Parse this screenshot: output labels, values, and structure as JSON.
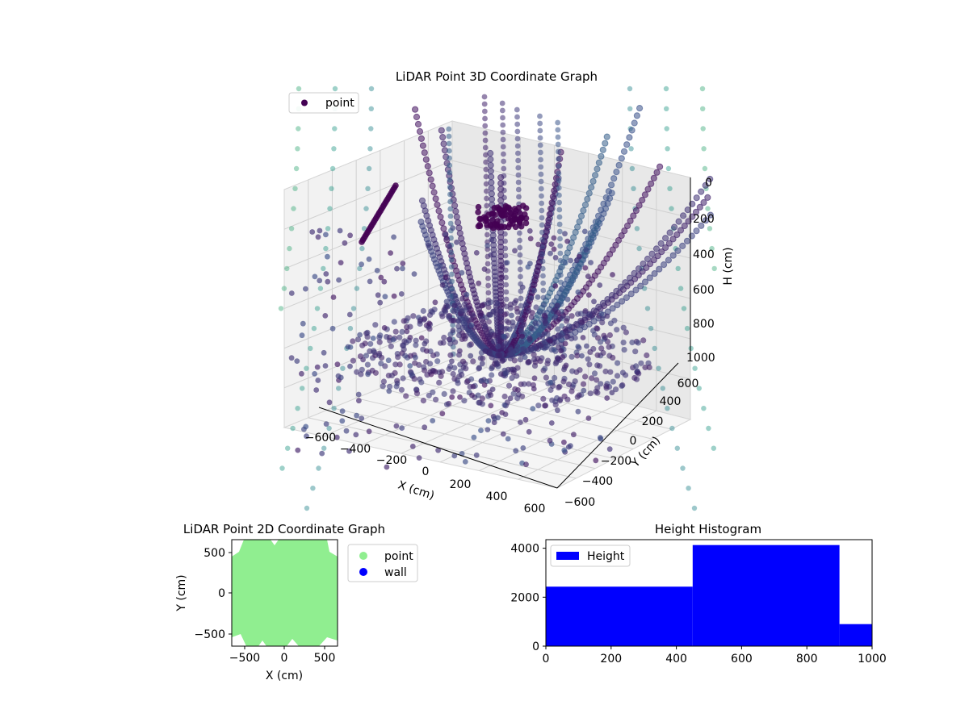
{
  "chart_data": [
    {
      "type": "scatter",
      "title": "LiDAR Point 3D Coordinate Graph",
      "xlabel": "X (cm)",
      "ylabel": "Y (cm)",
      "zlabel": "H (cm)",
      "xticks": [
        "−600",
        "−400",
        "−200",
        "0",
        "200",
        "400",
        "600"
      ],
      "yticks": [
        "−600",
        "−400",
        "−200",
        "0",
        "200",
        "400",
        "600"
      ],
      "zticks": [
        "0",
        "200",
        "400",
        "600",
        "800",
        "1000"
      ],
      "xlim": [
        -650,
        650
      ],
      "ylim": [
        -650,
        650
      ],
      "zlim": [
        0,
        1000
      ],
      "z_inverted": true,
      "legend": {
        "position": "top-left",
        "entries": [
          {
            "label": "point",
            "color": "#440154"
          }
        ]
      },
      "colormap": "viridis",
      "grid": true
    },
    {
      "type": "scatter",
      "title": "LiDAR Point 2D Coordinate Graph",
      "xlabel": "X (cm)",
      "ylabel": "Y (cm)",
      "xticks": [
        "−500",
        "0",
        "500"
      ],
      "yticks": [
        "500",
        "0",
        "−500"
      ],
      "xlim": [
        -650,
        650
      ],
      "ylim": [
        -650,
        650
      ],
      "legend": {
        "position": "outside-right",
        "entries": [
          {
            "label": "point",
            "color": "#90ee90"
          },
          {
            "label": "wall",
            "color": "#0000ff"
          }
        ]
      },
      "series": [
        {
          "name": "point",
          "color": "#90ee90"
        },
        {
          "name": "wall",
          "color": "#0000ff"
        }
      ]
    },
    {
      "type": "bar",
      "title": "Height Histogram",
      "bins": [
        {
          "x0": 0,
          "x1": 450,
          "value": 2430
        },
        {
          "x0": 450,
          "x1": 900,
          "value": 4130
        },
        {
          "x0": 900,
          "x1": 1000,
          "value": 900
        }
      ],
      "xticks": [
        "0",
        "200",
        "400",
        "600",
        "800",
        "1000"
      ],
      "yticks": [
        "0",
        "2000",
        "4000"
      ],
      "xlim": [
        0,
        1000
      ],
      "ylim": [
        0,
        4350
      ],
      "color": "#0000ff",
      "legend": {
        "position": "top-left",
        "entries": [
          {
            "label": "Height",
            "color": "#0000ff"
          }
        ]
      }
    }
  ]
}
